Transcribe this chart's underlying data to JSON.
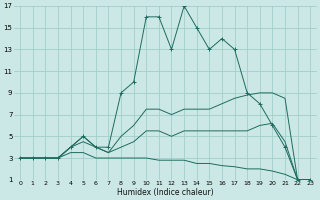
{
  "xlabel": "Humidex (Indice chaleur)",
  "bg_color": "#cce8e6",
  "grid_color": "#9fcfcc",
  "line_color": "#1e6b5e",
  "xlim": [
    -0.5,
    23.5
  ],
  "ylim": [
    1,
    17
  ],
  "xticks": [
    0,
    1,
    2,
    3,
    4,
    5,
    6,
    7,
    8,
    9,
    10,
    11,
    12,
    13,
    14,
    15,
    16,
    17,
    18,
    19,
    20,
    21,
    22,
    23
  ],
  "yticks": [
    1,
    3,
    5,
    7,
    9,
    11,
    13,
    15,
    17
  ],
  "series": [
    {
      "x": [
        0,
        1,
        2,
        3,
        4,
        5,
        6,
        7,
        8,
        9,
        10,
        11,
        12,
        13,
        14,
        15,
        16,
        17,
        18,
        19,
        20,
        21,
        22,
        23
      ],
      "y": [
        3,
        3,
        3,
        3,
        4,
        5,
        4,
        4,
        9,
        10,
        16,
        16,
        13,
        17,
        15,
        13,
        14,
        13,
        9,
        8,
        6,
        4,
        1,
        1
      ],
      "marker": "+"
    },
    {
      "x": [
        0,
        1,
        2,
        3,
        4,
        5,
        6,
        7,
        8,
        9,
        10,
        11,
        12,
        13,
        14,
        15,
        16,
        17,
        18,
        19,
        20,
        21,
        22,
        23
      ],
      "y": [
        3,
        3,
        3,
        3,
        3.5,
        3.5,
        3,
        3,
        3,
        3,
        3,
        2.8,
        2.8,
        2.8,
        2.5,
        2.5,
        2.3,
        2.2,
        2,
        2,
        1.8,
        1.5,
        1,
        1
      ],
      "marker": null
    },
    {
      "x": [
        0,
        1,
        2,
        3,
        4,
        5,
        6,
        7,
        8,
        9,
        10,
        11,
        12,
        13,
        14,
        15,
        16,
        17,
        18,
        19,
        20,
        21,
        22,
        23
      ],
      "y": [
        3,
        3,
        3,
        3,
        4,
        5,
        4,
        3.5,
        4,
        4.5,
        5.5,
        5.5,
        5,
        5.5,
        5.5,
        5.5,
        5.5,
        5.5,
        5.5,
        6,
        6.2,
        4.5,
        1,
        1
      ],
      "marker": null
    },
    {
      "x": [
        0,
        1,
        2,
        3,
        4,
        5,
        6,
        7,
        8,
        9,
        10,
        11,
        12,
        13,
        14,
        15,
        16,
        17,
        18,
        19,
        20,
        21,
        22,
        23
      ],
      "y": [
        3,
        3,
        3,
        3,
        4,
        4.5,
        4,
        3.5,
        5,
        6,
        7.5,
        7.5,
        7,
        7.5,
        7.5,
        7.5,
        8,
        8.5,
        8.8,
        9,
        9,
        8.5,
        1,
        1
      ],
      "marker": null
    }
  ]
}
